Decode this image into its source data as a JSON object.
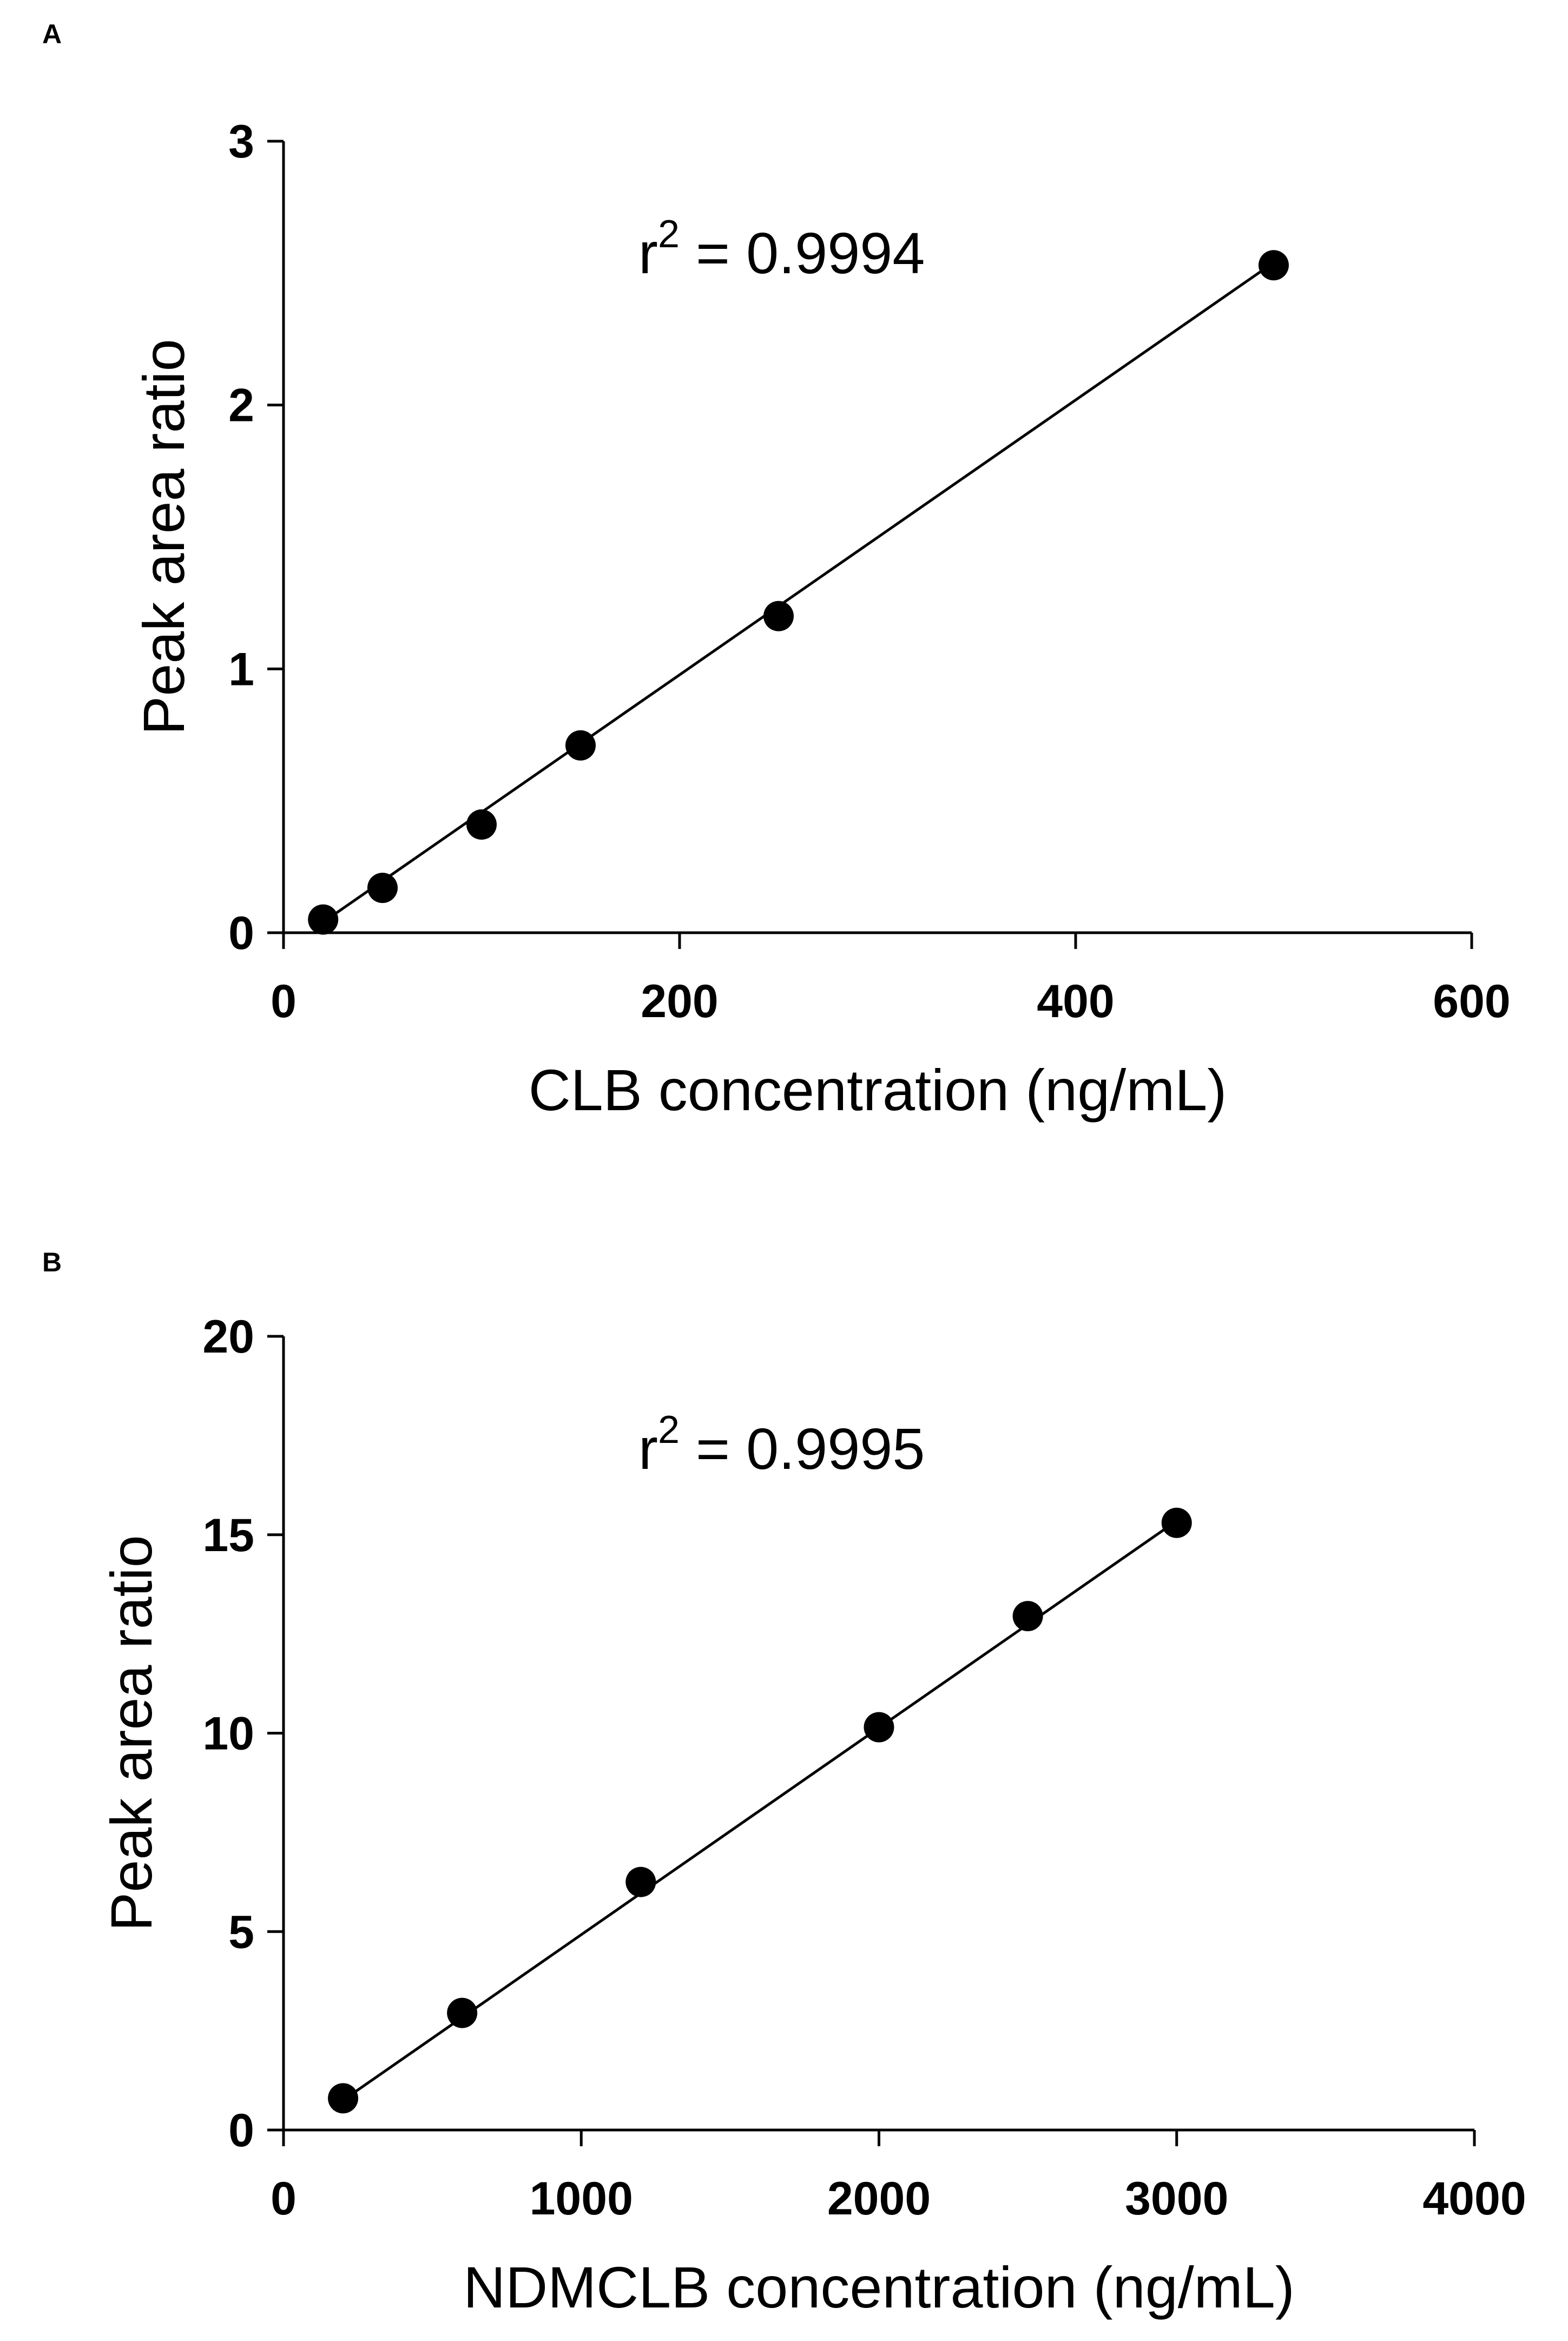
{
  "chart_data": [
    {
      "panel": "A",
      "type": "scatter",
      "xlabel": "CLB concentration (ng/mL)",
      "ylabel": "Peak area ratio",
      "xlim": [
        0,
        600
      ],
      "ylim": [
        0,
        3
      ],
      "xticks": [
        0,
        200,
        400,
        600
      ],
      "yticks": [
        0,
        1,
        2,
        3
      ],
      "annotation": {
        "prefix": "r",
        "sup": "2",
        "text": " = 0.9994"
      },
      "series": [
        {
          "name": "CLB",
          "x": [
            20,
            50,
            100,
            150,
            250,
            500
          ],
          "y": [
            0.05,
            0.17,
            0.41,
            0.71,
            1.2,
            2.53
          ]
        }
      ],
      "fit": {
        "x": [
          20,
          500
        ],
        "y": [
          0.04,
          2.54
        ]
      }
    },
    {
      "panel": "B",
      "type": "scatter",
      "xlabel": "NDMCLB concentration (ng/mL)",
      "ylabel": "Peak area ratio",
      "xlim": [
        0,
        4000
      ],
      "ylim": [
        0,
        20
      ],
      "xticks": [
        0,
        1000,
        2000,
        3000,
        4000
      ],
      "yticks": [
        0,
        5,
        10,
        15,
        20
      ],
      "annotation": {
        "prefix": "r",
        "sup": "2",
        "text": " = 0.9995"
      },
      "series": [
        {
          "name": "NDMCLB",
          "x": [
            200,
            600,
            1200,
            2000,
            2500,
            3000
          ],
          "y": [
            0.8,
            2.95,
            6.25,
            10.15,
            12.95,
            15.3
          ]
        }
      ],
      "fit": {
        "x": [
          200,
          3000
        ],
        "y": [
          0.75,
          15.35
        ]
      }
    }
  ]
}
